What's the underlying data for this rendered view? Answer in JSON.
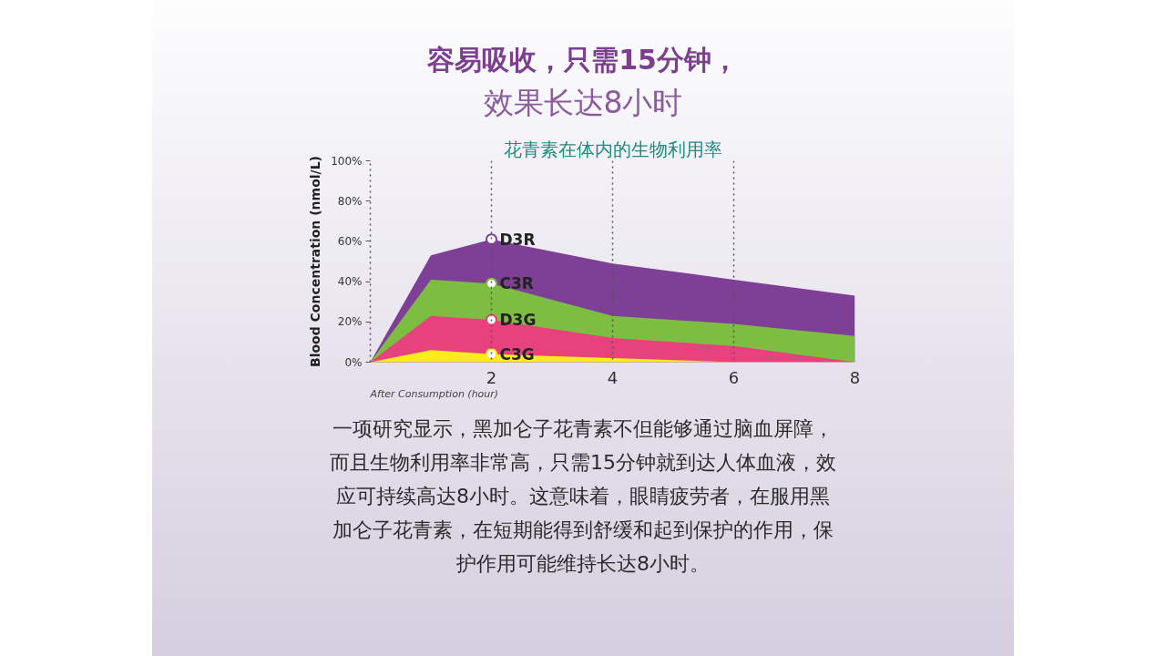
{
  "chart_data": {
    "type": "area",
    "title": "容易吸收，只需15分钟，",
    "subtitle": "效果长达8小时",
    "xlabel": "After Consumption (hour)",
    "ylabel": "Blood Concentration (nmol/L)",
    "annotations": [
      "花青素在体内的生物利用率",
      "一项研究显示，黑加仑子花青素不但能够通过脑血屏障，而且生物利用率非常高，只需15分钟就到达人体血液，效应可持续高达8小时。这意味着，眼睛疲劳者，在服用黑加仑子花青素，在短期能得到舒缓和起到保护的作用，保护作用可能维持长达8小时。"
    ],
    "x": [
      0,
      1,
      2,
      4,
      6,
      8
    ],
    "series": [
      {
        "name": "D3R",
        "color": "#7e3f96",
        "values": [
          0,
          53,
          61,
          49,
          41,
          33
        ]
      },
      {
        "name": "C3R",
        "color": "#7dbd42",
        "values": [
          0,
          41,
          39,
          23,
          19,
          13
        ]
      },
      {
        "name": "D3G",
        "color": "#e8427c",
        "values": [
          0,
          23,
          21,
          12,
          8,
          0
        ]
      },
      {
        "name": "C3G",
        "color": "#fcec1c",
        "values": [
          0,
          6,
          4,
          2,
          0,
          0
        ]
      }
    ],
    "xlim": [
      0,
      8
    ],
    "ylim": [
      0,
      100
    ],
    "xticks": [
      2,
      4,
      6,
      8
    ],
    "yticks": [
      {
        "value": 0,
        "label": "0%"
      },
      {
        "value": 20,
        "label": "20%"
      },
      {
        "value": 40,
        "label": "40%"
      },
      {
        "value": 60,
        "label": "60%"
      },
      {
        "value": 80,
        "label": "80%"
      },
      {
        "value": 100,
        "label": "100%"
      }
    ],
    "ref_lines": [
      {
        "axis": "x",
        "value": 2,
        "line_style": "dotted",
        "color": "#555555"
      },
      {
        "axis": "x",
        "value": 4,
        "line_style": "dotted",
        "color": "#555555"
      },
      {
        "axis": "x",
        "value": 6,
        "line_style": "dotted",
        "color": "#555555"
      }
    ],
    "grid": false
  }
}
